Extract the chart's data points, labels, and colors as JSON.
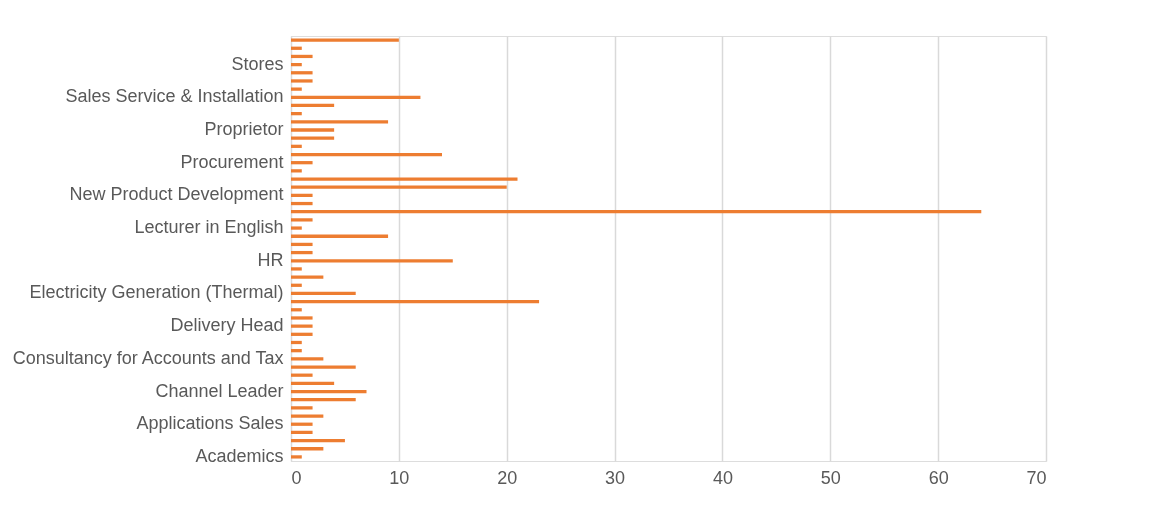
{
  "chart_data": {
    "type": "bar",
    "orientation": "horizontal",
    "color": "#ed7d31",
    "categories": [
      null,
      null,
      null,
      "Stores",
      null,
      null,
      null,
      "Sales Service & Installation",
      null,
      null,
      null,
      "Proprietor",
      null,
      null,
      null,
      "Procurement",
      null,
      null,
      null,
      "New Product Development",
      null,
      null,
      null,
      "Lecturer in English",
      null,
      null,
      null,
      "HR",
      null,
      null,
      null,
      "Electricity Generation (Thermal)",
      null,
      null,
      null,
      "Delivery Head",
      null,
      null,
      null,
      "Consultancy for Accounts and Tax",
      null,
      null,
      null,
      "Channel Leader",
      null,
      null,
      null,
      "Applications Sales",
      null,
      null,
      null,
      "Academics"
    ],
    "values": [
      10,
      1,
      2,
      1,
      2,
      2,
      1,
      12,
      4,
      1,
      9,
      4,
      4,
      1,
      14,
      2,
      1,
      21,
      20,
      2,
      2,
      64,
      2,
      1,
      9,
      2,
      2,
      15,
      1,
      3,
      1,
      6,
      23,
      1,
      2,
      2,
      2,
      1,
      1,
      3,
      6,
      2,
      4,
      7,
      6,
      2,
      3,
      2,
      2,
      5,
      3,
      1
    ],
    "xlim": [
      0,
      70
    ],
    "xticks": [
      0,
      10,
      20,
      30,
      40,
      50,
      60,
      70
    ],
    "grid": "x"
  }
}
